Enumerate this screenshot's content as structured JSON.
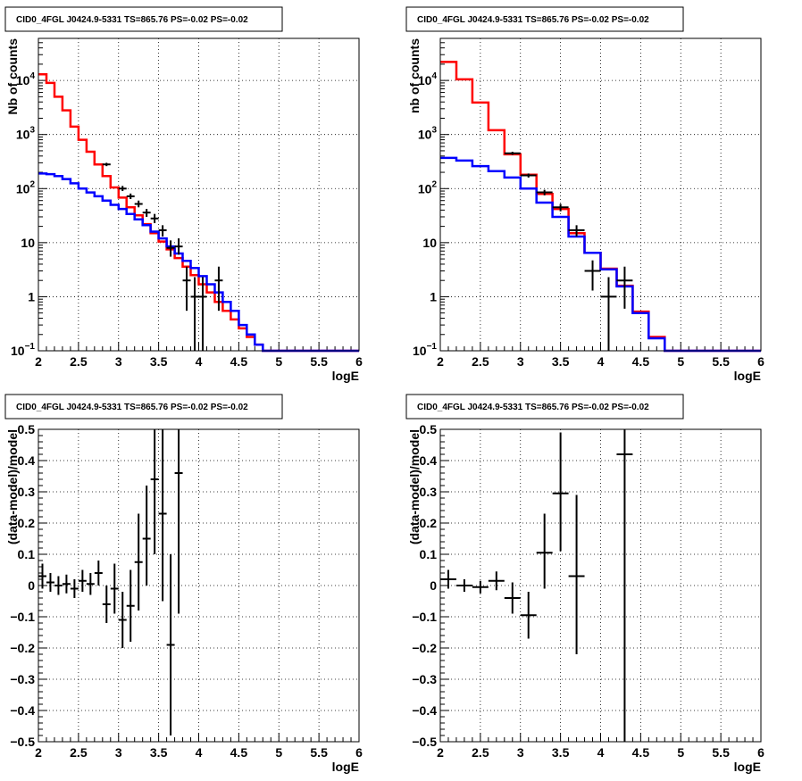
{
  "colors": {
    "data": "#000000",
    "model_total": "#ff0000",
    "model_source": "#0000ff",
    "grid": "#000000"
  },
  "chart_data": [
    {
      "type": "line",
      "title": "CID0_4FGL J0424.9-5331 TS=865.76 PS=-0.02 PS=-0.02",
      "xlabel": "logE",
      "ylabel": "Nb of counts",
      "xlim": [
        2,
        6
      ],
      "ylim": [
        0.1,
        60000
      ],
      "log_y": true,
      "grid": true,
      "xticks": [
        "2",
        "2.5",
        "3",
        "3.5",
        "4",
        "4.5",
        "5",
        "5.5",
        "6"
      ],
      "yticks": [
        {
          "v": 0.1,
          "label": "10",
          "exp": "−1"
        },
        {
          "v": 1,
          "label": "1",
          "exp": ""
        },
        {
          "v": 10,
          "label": "10",
          "exp": ""
        },
        {
          "v": 100,
          "label": "10",
          "exp": "2"
        },
        {
          "v": 1000,
          "label": "10",
          "exp": "3"
        },
        {
          "v": 10000,
          "label": "10",
          "exp": "4"
        }
      ],
      "series": [
        {
          "kind": "step",
          "color": "#ff0000",
          "edges": [
            2,
            2.1,
            2.2,
            2.3,
            2.4,
            2.5,
            2.6,
            2.7,
            2.8,
            2.9,
            3,
            3.1,
            3.2,
            3.3,
            3.4,
            3.5,
            3.6,
            3.7,
            3.8,
            3.9,
            4,
            4.1,
            4.2,
            4.3,
            4.4,
            4.5,
            4.6,
            4.7,
            4.8,
            4.9,
            5,
            5.1,
            5.2,
            5.3,
            5.4,
            5.5,
            5.6,
            5.7,
            5.8,
            5.9,
            6
          ],
          "values": [
            13000,
            9000,
            5000,
            2800,
            1400,
            800,
            480,
            280,
            170,
            105,
            68,
            45,
            32,
            22,
            15,
            10.5,
            7.5,
            5.2,
            3.6,
            2.5,
            1.7,
            1.2,
            0.8,
            0.55,
            0.38,
            0.26,
            0.18,
            0.13,
            0.1,
            0.1,
            0.1,
            0.1,
            0.1,
            0.1,
            0.1,
            0.1,
            0.1,
            0.1,
            0.1,
            0.1
          ]
        },
        {
          "kind": "step",
          "color": "#0000ff",
          "edges": [
            2,
            2.1,
            2.2,
            2.3,
            2.4,
            2.5,
            2.6,
            2.7,
            2.8,
            2.9,
            3,
            3.1,
            3.2,
            3.3,
            3.4,
            3.5,
            3.6,
            3.7,
            3.8,
            3.9,
            4,
            4.1,
            4.2,
            4.3,
            4.4,
            4.5,
            4.6,
            4.7,
            4.8,
            4.9,
            5,
            5.1,
            5.2,
            5.3,
            5.4,
            5.5,
            5.6,
            5.7,
            5.8,
            5.9,
            6
          ],
          "values": [
            190,
            185,
            170,
            150,
            125,
            100,
            85,
            72,
            60,
            50,
            42,
            34,
            27,
            21,
            16,
            12,
            8.5,
            6.3,
            4.6,
            3.4,
            2.4,
            1.7,
            1.2,
            0.8,
            0.55,
            0.3,
            0.2,
            0.13,
            0.1,
            0.1,
            0.1,
            0.1,
            0.1,
            0.1,
            0.1,
            0.1,
            0.1,
            0.1,
            0.1,
            0.1
          ]
        },
        {
          "kind": "points",
          "color": "#000000",
          "points": [
            {
              "x": 2.85,
              "y": 280,
              "xerr": 0.05,
              "ylo": 260,
              "yhi": 300
            },
            {
              "x": 3.05,
              "y": 100,
              "xerr": 0.05,
              "ylo": 90,
              "yhi": 112
            },
            {
              "x": 3.15,
              "y": 72,
              "xerr": 0.05,
              "ylo": 64,
              "yhi": 81
            },
            {
              "x": 3.25,
              "y": 52,
              "xerr": 0.05,
              "ylo": 45,
              "yhi": 60
            },
            {
              "x": 3.35,
              "y": 36,
              "xerr": 0.05,
              "ylo": 30,
              "yhi": 42
            },
            {
              "x": 3.45,
              "y": 28,
              "xerr": 0.05,
              "ylo": 23,
              "yhi": 34
            },
            {
              "x": 3.55,
              "y": 17,
              "xerr": 0.05,
              "ylo": 13,
              "yhi": 21
            },
            {
              "x": 3.65,
              "y": 8,
              "xerr": 0.05,
              "ylo": 5.5,
              "yhi": 11
            },
            {
              "x": 3.75,
              "y": 8.5,
              "xerr": 0.05,
              "ylo": 6,
              "yhi": 12
            },
            {
              "x": 3.85,
              "y": 2,
              "xerr": 0.05,
              "ylo": 0.55,
              "yhi": 3.6
            },
            {
              "x": 3.95,
              "y": 1,
              "xerr": 0.05,
              "ylo": 0.1,
              "yhi": 2.3
            },
            {
              "x": 4.05,
              "y": 1,
              "xerr": 0.05,
              "ylo": 0.1,
              "yhi": 2.3
            },
            {
              "x": 4.25,
              "y": 2,
              "xerr": 0.05,
              "ylo": 0.55,
              "yhi": 3.6
            }
          ]
        }
      ]
    },
    {
      "type": "line",
      "title": "CID0_4FGL J0424.9-5331 TS=865.76 PS=-0.02 PS=-0.02",
      "xlabel": "logE",
      "ylabel": "nb of counts",
      "xlim": [
        2,
        6
      ],
      "ylim": [
        0.1,
        60000
      ],
      "log_y": true,
      "grid": true,
      "xticks": [
        "2",
        "2.5",
        "3",
        "3.5",
        "4",
        "4.5",
        "5",
        "5.5",
        "6"
      ],
      "yticks": [
        {
          "v": 0.1,
          "label": "10",
          "exp": "−1"
        },
        {
          "v": 1,
          "label": "1",
          "exp": ""
        },
        {
          "v": 10,
          "label": "10",
          "exp": ""
        },
        {
          "v": 100,
          "label": "10",
          "exp": "2"
        },
        {
          "v": 1000,
          "label": "10",
          "exp": "3"
        },
        {
          "v": 10000,
          "label": "10",
          "exp": "4"
        }
      ],
      "series": [
        {
          "kind": "step",
          "color": "#ff0000",
          "edges": [
            2,
            2.2,
            2.4,
            2.6,
            2.8,
            3,
            3.2,
            3.4,
            3.6,
            3.8,
            4,
            4.2,
            4.4,
            4.6,
            4.8,
            5,
            5.2,
            5.4,
            5.6,
            5.8,
            6
          ],
          "values": [
            22000,
            10500,
            3900,
            1200,
            430,
            180,
            80,
            42,
            15,
            6.5,
            3.3,
            1.6,
            0.53,
            0.18,
            0.1,
            0.1,
            0.1,
            0.1,
            0.1,
            0.1
          ]
        },
        {
          "kind": "step",
          "color": "#0000ff",
          "edges": [
            2,
            2.2,
            2.4,
            2.6,
            2.8,
            3,
            3.2,
            3.4,
            3.6,
            3.8,
            4,
            4.2,
            4.4,
            4.6,
            4.8,
            5,
            5.2,
            5.4,
            5.6,
            5.8,
            6
          ],
          "values": [
            370,
            330,
            260,
            210,
            160,
            100,
            55,
            30,
            13,
            6.5,
            3.2,
            1.55,
            0.5,
            0.17,
            0.1,
            0.1,
            0.1,
            0.1,
            0.1,
            0.1
          ]
        },
        {
          "kind": "points",
          "color": "#000000",
          "points": [
            {
              "x": 2.9,
              "y": 450,
              "xerr": 0.1,
              "ylo": 420,
              "yhi": 480
            },
            {
              "x": 3.1,
              "y": 175,
              "xerr": 0.1,
              "ylo": 160,
              "yhi": 190
            },
            {
              "x": 3.3,
              "y": 85,
              "xerr": 0.1,
              "ylo": 75,
              "yhi": 95
            },
            {
              "x": 3.5,
              "y": 45,
              "xerr": 0.1,
              "ylo": 38,
              "yhi": 52
            },
            {
              "x": 3.7,
              "y": 17,
              "xerr": 0.1,
              "ylo": 13,
              "yhi": 21
            },
            {
              "x": 3.9,
              "y": 3,
              "xerr": 0.1,
              "ylo": 1.3,
              "yhi": 4.7
            },
            {
              "x": 4.1,
              "y": 1,
              "xerr": 0.1,
              "ylo": 0.1,
              "yhi": 2.3
            },
            {
              "x": 4.3,
              "y": 2,
              "xerr": 0.1,
              "ylo": 0.6,
              "yhi": 3.6
            }
          ]
        }
      ]
    },
    {
      "type": "scatter",
      "title": "CID0_4FGL J0424.9-5331 TS=865.76 PS=-0.02 PS=-0.02",
      "xlabel": "logE",
      "ylabel": "(data-model)/model",
      "xlim": [
        2,
        6
      ],
      "ylim": [
        -0.5,
        0.5
      ],
      "log_y": false,
      "grid": true,
      "xticks": [
        "2",
        "2.5",
        "3",
        "3.5",
        "4",
        "4.5",
        "5",
        "5.5",
        "6"
      ],
      "yticks": [
        {
          "v": -0.5,
          "label": "−0.5",
          "exp": ""
        },
        {
          "v": -0.4,
          "label": "−0.4",
          "exp": ""
        },
        {
          "v": -0.3,
          "label": "−0.3",
          "exp": ""
        },
        {
          "v": -0.2,
          "label": "−0.2",
          "exp": ""
        },
        {
          "v": -0.1,
          "label": "−0.1",
          "exp": ""
        },
        {
          "v": 0,
          "label": "0",
          "exp": ""
        },
        {
          "v": 0.1,
          "label": "0.1",
          "exp": ""
        },
        {
          "v": 0.2,
          "label": "0.2",
          "exp": ""
        },
        {
          "v": 0.3,
          "label": "0.3",
          "exp": ""
        },
        {
          "v": 0.4,
          "label": "0.4",
          "exp": ""
        },
        {
          "v": 0.5,
          "label": "0.5",
          "exp": ""
        }
      ],
      "series": [
        {
          "kind": "points",
          "color": "#000000",
          "points": [
            {
              "x": 2.05,
              "y": 0.03,
              "xerr": 0.05,
              "ylo": -0.01,
              "yhi": 0.07
            },
            {
              "x": 2.15,
              "y": 0.01,
              "xerr": 0.05,
              "ylo": -0.02,
              "yhi": 0.04
            },
            {
              "x": 2.25,
              "y": 0.0,
              "xerr": 0.05,
              "ylo": -0.03,
              "yhi": 0.03
            },
            {
              "x": 2.35,
              "y": 0.005,
              "xerr": 0.05,
              "ylo": -0.025,
              "yhi": 0.035
            },
            {
              "x": 2.45,
              "y": -0.01,
              "xerr": 0.05,
              "ylo": -0.04,
              "yhi": 0.02
            },
            {
              "x": 2.55,
              "y": 0.015,
              "xerr": 0.05,
              "ylo": -0.02,
              "yhi": 0.05
            },
            {
              "x": 2.65,
              "y": 0.005,
              "xerr": 0.05,
              "ylo": -0.03,
              "yhi": 0.04
            },
            {
              "x": 2.75,
              "y": 0.04,
              "xerr": 0.05,
              "ylo": 0.0,
              "yhi": 0.08
            },
            {
              "x": 2.85,
              "y": -0.06,
              "xerr": 0.05,
              "ylo": -0.12,
              "yhi": 0.0
            },
            {
              "x": 2.95,
              "y": -0.01,
              "xerr": 0.05,
              "ylo": -0.09,
              "yhi": 0.07
            },
            {
              "x": 3.05,
              "y": -0.11,
              "xerr": 0.05,
              "ylo": -0.2,
              "yhi": -0.02
            },
            {
              "x": 3.15,
              "y": -0.065,
              "xerr": 0.05,
              "ylo": -0.18,
              "yhi": 0.05
            },
            {
              "x": 3.25,
              "y": 0.075,
              "xerr": 0.05,
              "ylo": -0.08,
              "yhi": 0.23
            },
            {
              "x": 3.35,
              "y": 0.15,
              "xerr": 0.05,
              "ylo": 0.0,
              "yhi": 0.32
            },
            {
              "x": 3.45,
              "y": 0.34,
              "xerr": 0.05,
              "ylo": 0.1,
              "yhi": 0.5
            },
            {
              "x": 3.55,
              "y": 0.23,
              "xerr": 0.05,
              "ylo": -0.05,
              "yhi": 0.5
            },
            {
              "x": 3.65,
              "y": -0.19,
              "xerr": 0.05,
              "ylo": -0.48,
              "yhi": 0.1
            },
            {
              "x": 3.75,
              "y": 0.36,
              "xerr": 0.05,
              "ylo": -0.09,
              "yhi": 0.5
            }
          ]
        }
      ]
    },
    {
      "type": "scatter",
      "title": "CID0_4FGL J0424.9-5331 TS=865.76 PS=-0.02 PS=-0.02",
      "xlabel": "logE",
      "ylabel": "(data-model)/model",
      "xlim": [
        2,
        6
      ],
      "ylim": [
        -0.5,
        0.5
      ],
      "log_y": false,
      "grid": true,
      "xticks": [
        "2",
        "2.5",
        "3",
        "3.5",
        "4",
        "4.5",
        "5",
        "5.5",
        "6"
      ],
      "yticks": [
        {
          "v": -0.5,
          "label": "−0.5",
          "exp": ""
        },
        {
          "v": -0.4,
          "label": "−0.4",
          "exp": ""
        },
        {
          "v": -0.3,
          "label": "−0.3",
          "exp": ""
        },
        {
          "v": -0.2,
          "label": "−0.2",
          "exp": ""
        },
        {
          "v": -0.1,
          "label": "−0.1",
          "exp": ""
        },
        {
          "v": 0,
          "label": "0",
          "exp": ""
        },
        {
          "v": 0.1,
          "label": "0.1",
          "exp": ""
        },
        {
          "v": 0.2,
          "label": "0.2",
          "exp": ""
        },
        {
          "v": 0.3,
          "label": "0.3",
          "exp": ""
        },
        {
          "v": 0.4,
          "label": "0.4",
          "exp": ""
        },
        {
          "v": 0.5,
          "label": "0.5",
          "exp": ""
        }
      ],
      "series": [
        {
          "kind": "points",
          "color": "#000000",
          "points": [
            {
              "x": 2.1,
              "y": 0.02,
              "xerr": 0.1,
              "ylo": -0.01,
              "yhi": 0.05
            },
            {
              "x": 2.3,
              "y": 0.0,
              "xerr": 0.1,
              "ylo": -0.02,
              "yhi": 0.02
            },
            {
              "x": 2.5,
              "y": -0.005,
              "xerr": 0.1,
              "ylo": -0.025,
              "yhi": 0.015
            },
            {
              "x": 2.7,
              "y": 0.015,
              "xerr": 0.1,
              "ylo": -0.015,
              "yhi": 0.045
            },
            {
              "x": 2.9,
              "y": -0.04,
              "xerr": 0.1,
              "ylo": -0.09,
              "yhi": 0.01
            },
            {
              "x": 3.1,
              "y": -0.095,
              "xerr": 0.1,
              "ylo": -0.17,
              "yhi": -0.02
            },
            {
              "x": 3.3,
              "y": 0.105,
              "xerr": 0.1,
              "ylo": -0.01,
              "yhi": 0.23
            },
            {
              "x": 3.5,
              "y": 0.295,
              "xerr": 0.1,
              "ylo": 0.11,
              "yhi": 0.49
            },
            {
              "x": 3.7,
              "y": 0.03,
              "xerr": 0.1,
              "ylo": -0.22,
              "yhi": 0.29
            },
            {
              "x": 4.3,
              "y": 0.42,
              "xerr": 0.1,
              "ylo": -0.5,
              "yhi": 0.5
            }
          ]
        }
      ]
    }
  ]
}
